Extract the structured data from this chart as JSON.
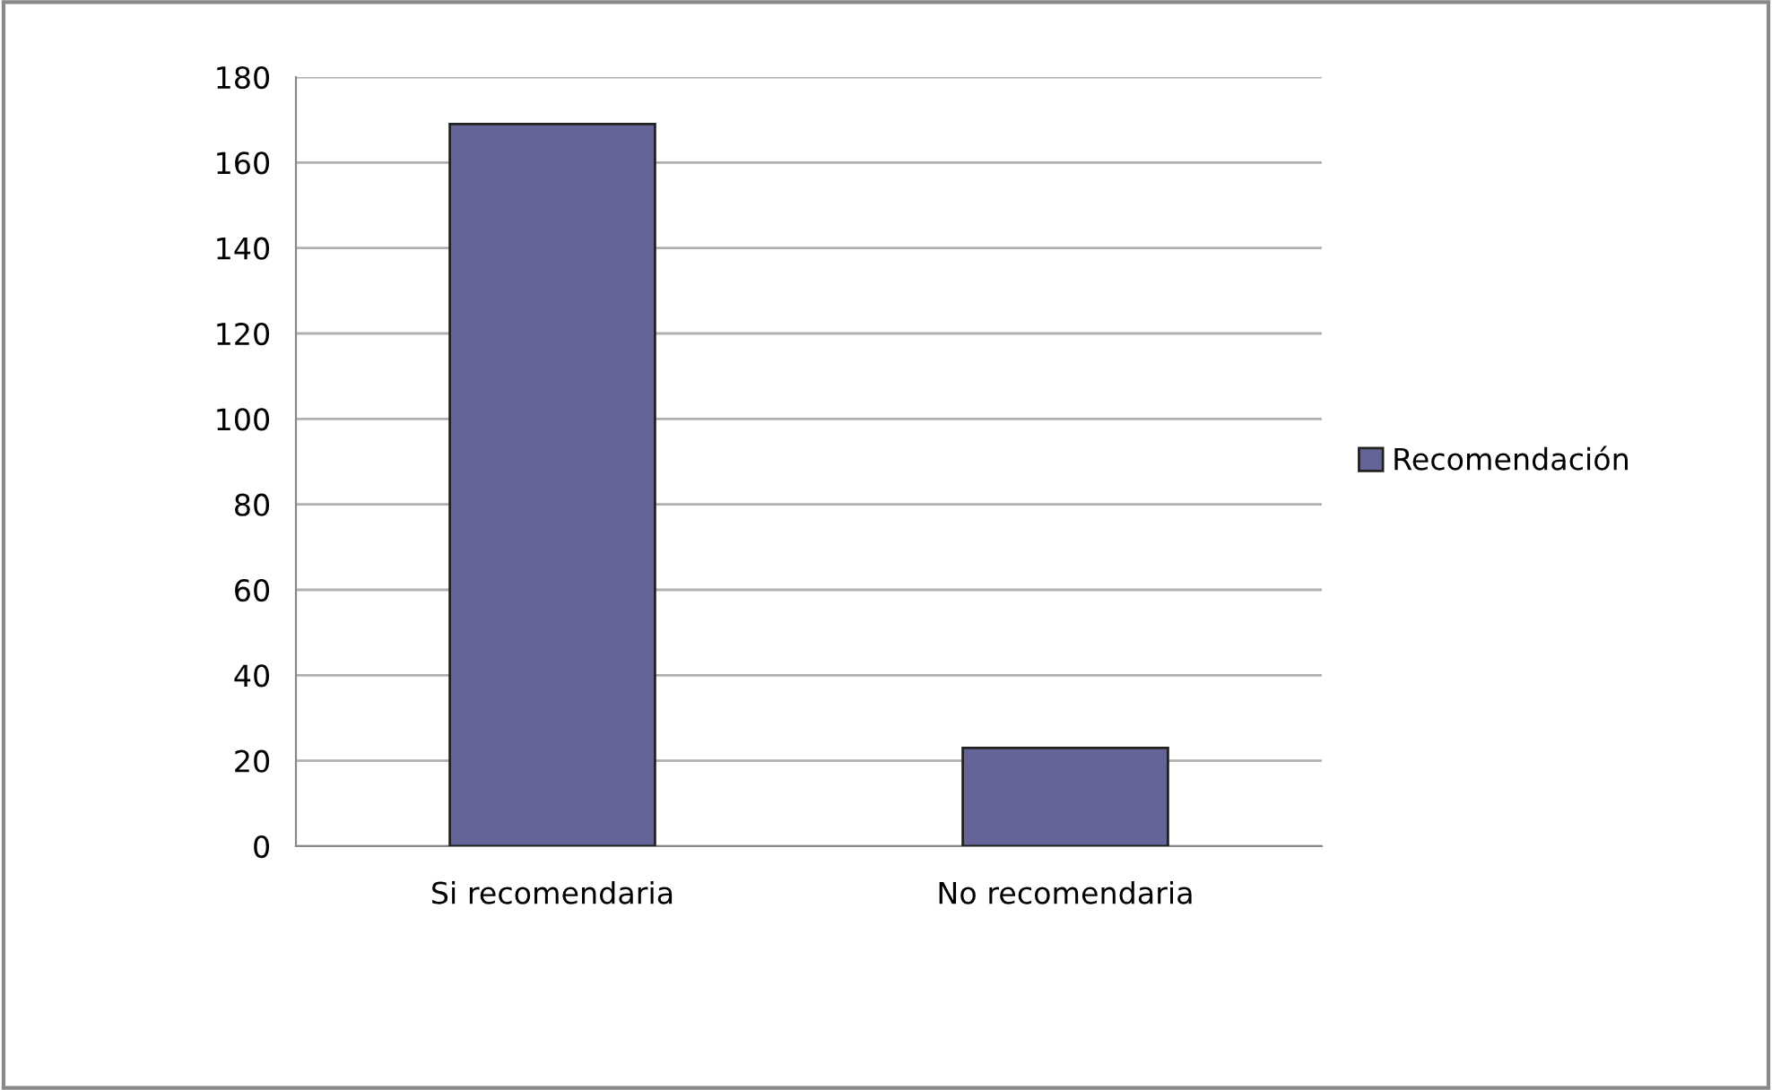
{
  "chart_data": {
    "type": "bar",
    "categories": [
      "Si recomendaria",
      "No recomendaria"
    ],
    "series": [
      {
        "name": "Recomendación",
        "color": "#646496",
        "values": [
          169,
          23
        ]
      }
    ],
    "ylim": [
      0,
      180
    ],
    "yticks": [
      0,
      20,
      40,
      60,
      80,
      100,
      120,
      140,
      160,
      180
    ],
    "grid": "y",
    "legend": "right"
  }
}
